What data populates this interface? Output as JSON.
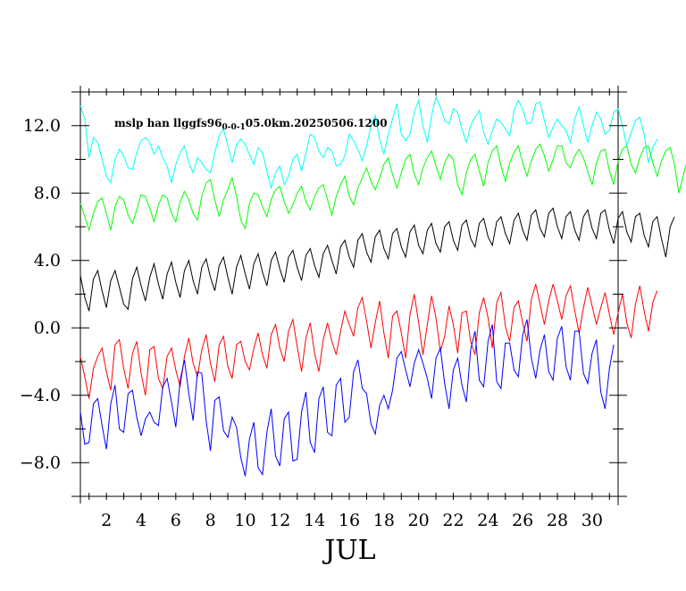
{
  "chart_data": {
    "type": "line",
    "title_main": "mslp han llggfs96",
    "title_sub": "0-0-1",
    "title_tail": "05.0km.20250506.1200",
    "xlabel": "JUL",
    "ylabel": "",
    "xlim": [
      0.5,
      31.5
    ],
    "ylim": [
      -10,
      14
    ],
    "x_ticks": [
      2,
      4,
      6,
      8,
      10,
      12,
      14,
      16,
      18,
      20,
      22,
      24,
      26,
      28,
      30
    ],
    "x_tick_labels": [
      "2",
      "4",
      "6",
      "8",
      "10",
      "12",
      "14",
      "16",
      "18",
      "20",
      "22",
      "24",
      "26",
      "28",
      "30"
    ],
    "y_ticks": [
      -8,
      -4,
      0,
      4,
      8,
      12
    ],
    "y_tick_labels": [
      "−8.0",
      "−4.0",
      "0.0",
      "4.0",
      "8.0",
      "12.0"
    ],
    "grid": false,
    "samples_per_day": 4,
    "series": [
      {
        "color": "#00ffff",
        "values": [
          13.2,
          12.4,
          10.1,
          11.3,
          11.0,
          10.0,
          9.0,
          8.6,
          10.0,
          10.6,
          10.2,
          9.5,
          9.4,
          10.4,
          11.1,
          11.3,
          11.0,
          10.3,
          10.8,
          10.1,
          9.6,
          8.6,
          9.7,
          10.4,
          10.8,
          9.8,
          9.2,
          10.1,
          9.8,
          9.4,
          9.2,
          10.4,
          11.4,
          11.8,
          10.8,
          9.8,
          10.9,
          11.2,
          10.9,
          10.3,
          9.7,
          10.7,
          10.4,
          9.3,
          8.3,
          9.2,
          9.6,
          8.5,
          9.0,
          10.0,
          10.3,
          9.3,
          10.4,
          11.5,
          11.3,
          10.5,
          10.1,
          10.7,
          10.5,
          9.6,
          9.7,
          10.2,
          11.5,
          11.1,
          10.6,
          9.9,
          10.8,
          12.0,
          12.6,
          11.2,
          10.3,
          11.5,
          12.4,
          13.3,
          11.5,
          11.1,
          11.5,
          12.8,
          13.5,
          12.0,
          11.0,
          12.6,
          13.7,
          13.1,
          12.3,
          12.1,
          13.0,
          12.8,
          11.8,
          11.0,
          12.0,
          12.5,
          12.9,
          11.6,
          10.9,
          11.7,
          12.4,
          12.2,
          11.8,
          11.4,
          12.9,
          13.5,
          13.0,
          12.1,
          12.2,
          13.3,
          13.4,
          12.3,
          11.3,
          11.9,
          12.4,
          12.0,
          11.7,
          11.0,
          12.4,
          13.1,
          12.0,
          11.0,
          12.0,
          12.8,
          12.4,
          11.5,
          11.7,
          12.8,
          13.0,
          12.0,
          10.8,
          11.6,
          12.3,
          12.5,
          11.5,
          9.8,
          10.7,
          11.2
        ]
      },
      {
        "color": "#00ff00",
        "values": [
          7.4,
          6.6,
          5.8,
          6.8,
          7.5,
          7.7,
          6.8,
          5.8,
          7.2,
          7.8,
          7.6,
          6.7,
          6.2,
          7.0,
          7.9,
          7.8,
          7.1,
          6.3,
          7.3,
          7.9,
          7.7,
          6.8,
          6.3,
          7.5,
          8.1,
          7.6,
          6.8,
          6.4,
          7.8,
          8.6,
          8.8,
          7.6,
          6.6,
          7.6,
          8.2,
          8.9,
          7.8,
          6.4,
          5.9,
          7.4,
          8.0,
          7.9,
          7.2,
          6.6,
          7.6,
          8.2,
          8.4,
          7.5,
          6.8,
          7.3,
          8.0,
          8.4,
          7.5,
          7.0,
          7.8,
          8.3,
          8.5,
          7.6,
          6.7,
          7.8,
          8.5,
          9.0,
          7.8,
          7.3,
          8.3,
          8.9,
          9.5,
          8.7,
          8.2,
          8.9,
          9.7,
          10.1,
          9.1,
          8.3,
          9.2,
          10.0,
          10.3,
          9.1,
          8.5,
          9.5,
          10.1,
          10.5,
          9.6,
          8.8,
          9.8,
          10.3,
          10.0,
          8.5,
          7.9,
          9.2,
          10.0,
          10.3,
          9.3,
          8.4,
          9.8,
          10.5,
          10.8,
          9.6,
          8.7,
          9.8,
          10.4,
          10.8,
          9.8,
          9.0,
          9.9,
          10.6,
          10.9,
          10.2,
          9.3,
          10.0,
          10.8,
          10.8,
          9.8,
          9.5,
          10.2,
          10.6,
          10.1,
          9.3,
          8.5,
          9.8,
          10.5,
          10.6,
          9.3,
          8.5,
          9.9,
          10.6,
          10.8,
          9.7,
          9.2,
          10.1,
          10.7,
          10.8,
          9.8,
          9.0,
          9.9,
          10.5,
          10.7,
          9.7,
          8.0,
          9.0,
          10.0,
          10.4
        ]
      },
      {
        "color": "#000000",
        "values": [
          3.1,
          1.8,
          1.0,
          2.9,
          3.4,
          2.2,
          1.2,
          2.8,
          3.4,
          2.4,
          1.4,
          1.1,
          2.9,
          3.6,
          2.5,
          1.6,
          3.0,
          3.8,
          2.6,
          1.7,
          3.2,
          3.9,
          2.7,
          1.8,
          3.4,
          4.0,
          2.8,
          2.0,
          3.6,
          4.1,
          3.0,
          2.2,
          3.7,
          4.2,
          3.0,
          2.0,
          3.6,
          4.3,
          3.2,
          2.3,
          3.8,
          4.4,
          3.3,
          2.5,
          4.0,
          4.5,
          3.5,
          2.7,
          4.2,
          4.6,
          3.6,
          2.8,
          4.3,
          4.7,
          3.7,
          3.0,
          4.4,
          4.9,
          4.0,
          3.2,
          4.8,
          5.2,
          4.2,
          3.6,
          5.2,
          5.6,
          4.5,
          3.9,
          5.4,
          5.8,
          4.7,
          4.1,
          5.6,
          5.9,
          4.8,
          4.2,
          5.7,
          6.1,
          4.9,
          4.4,
          5.8,
          6.2,
          5.0,
          4.5,
          6.0,
          6.3,
          5.2,
          4.6,
          6.1,
          6.4,
          5.3,
          4.8,
          6.2,
          6.5,
          5.4,
          4.9,
          6.3,
          6.6,
          5.6,
          5.0,
          6.4,
          6.8,
          5.8,
          5.2,
          6.7,
          7.0,
          5.9,
          5.4,
          6.8,
          7.1,
          6.0,
          5.3,
          6.6,
          6.9,
          5.8,
          5.2,
          6.6,
          7.0,
          5.9,
          5.3,
          6.8,
          7.0,
          5.8,
          5.0,
          6.5,
          6.9,
          5.7,
          5.1,
          6.6,
          6.8,
          5.5,
          4.8,
          6.3,
          6.6,
          5.3,
          4.2,
          6.0,
          6.6
        ]
      },
      {
        "color": "#ff0000",
        "values": [
          -1.7,
          -2.9,
          -4.2,
          -2.4,
          -1.7,
          -1.2,
          -2.6,
          -3.7,
          -1.0,
          -0.7,
          -2.4,
          -3.6,
          -1.5,
          -0.8,
          -2.7,
          -4.0,
          -1.3,
          -1.1,
          -3.0,
          -3.6,
          -1.7,
          -1.2,
          -2.5,
          -3.5,
          -1.7,
          -0.6,
          -2.1,
          -2.9,
          -1.3,
          -0.4,
          -2.1,
          -3.2,
          -1.0,
          -0.5,
          -2.3,
          -3.0,
          -1.0,
          -0.8,
          -2.0,
          -2.5,
          -1.2,
          -0.3,
          -1.6,
          -2.4,
          -0.4,
          0.2,
          -1.2,
          -2.0,
          -0.2,
          0.5,
          -1.1,
          -2.6,
          -0.6,
          0.3,
          -1.5,
          -2.6,
          -0.7,
          0.3,
          -0.8,
          -1.6,
          -0.2,
          1.0,
          0.2,
          -0.5,
          1.2,
          1.8,
          0.4,
          -1.2,
          0.3,
          1.6,
          -0.3,
          -1.8,
          0.7,
          1.0,
          -0.3,
          -1.8,
          0.8,
          2.0,
          0.3,
          -1.6,
          0.2,
          1.9,
          0.6,
          -1.4,
          -0.5,
          1.3,
          0.2,
          -1.5,
          0.9,
          1.0,
          -0.8,
          -1.6,
          0.9,
          1.8,
          0.6,
          -1.2,
          1.5,
          2.1,
          0.1,
          -0.8,
          1.2,
          1.6,
          0.3,
          -0.8,
          1.7,
          2.6,
          1.4,
          0.2,
          1.6,
          2.6,
          1.6,
          0.5,
          1.9,
          2.5,
          1.0,
          -0.3,
          1.2,
          2.4,
          1.3,
          0.2,
          1.2,
          2.1,
          0.8,
          -0.4,
          0.9,
          2.0,
          0.3,
          -0.6,
          1.4,
          2.5,
          1.0,
          -0.2,
          1.5,
          2.2
        ]
      },
      {
        "color": "#0000ff",
        "values": [
          -5.0,
          -6.9,
          -6.8,
          -4.5,
          -4.2,
          -5.8,
          -7.2,
          -4.5,
          -3.4,
          -6.0,
          -6.2,
          -3.9,
          -3.7,
          -5.3,
          -6.4,
          -5.4,
          -5.0,
          -5.6,
          -5.8,
          -3.5,
          -3.0,
          -4.4,
          -5.9,
          -3.1,
          -1.9,
          -3.9,
          -5.5,
          -2.6,
          -2.7,
          -5.5,
          -7.3,
          -4.3,
          -4.1,
          -6.1,
          -6.5,
          -5.3,
          -5.9,
          -7.7,
          -8.8,
          -6.6,
          -5.6,
          -8.3,
          -8.7,
          -6.2,
          -4.8,
          -7.6,
          -8.2,
          -5.4,
          -5.0,
          -7.9,
          -7.8,
          -5.0,
          -3.8,
          -6.8,
          -7.4,
          -4.2,
          -3.5,
          -6.2,
          -6.4,
          -3.4,
          -3.0,
          -5.6,
          -5.3,
          -2.6,
          -1.9,
          -3.6,
          -3.9,
          -5.7,
          -6.3,
          -4.6,
          -4.0,
          -4.8,
          -3.7,
          -1.8,
          -1.4,
          -2.5,
          -3.5,
          -2.1,
          -1.3,
          -2.1,
          -3.0,
          -4.2,
          -1.8,
          -1.2,
          -3.3,
          -4.8,
          -2.5,
          -1.8,
          -3.4,
          -4.4,
          -1.3,
          -0.2,
          -3.1,
          -3.5,
          -0.8,
          0.2,
          -3.2,
          -3.6,
          -0.9,
          -0.9,
          -2.5,
          -2.9,
          -0.4,
          0.5,
          -1.8,
          -3.0,
          -1.3,
          -0.4,
          -2.6,
          -3.1,
          -0.6,
          0.1,
          -2.3,
          -3.1,
          -0.2,
          -0.2,
          -2.7,
          -3.3,
          -1.5,
          -0.7,
          -3.8,
          -4.8,
          -2.4,
          -1.0
        ]
      }
    ]
  }
}
